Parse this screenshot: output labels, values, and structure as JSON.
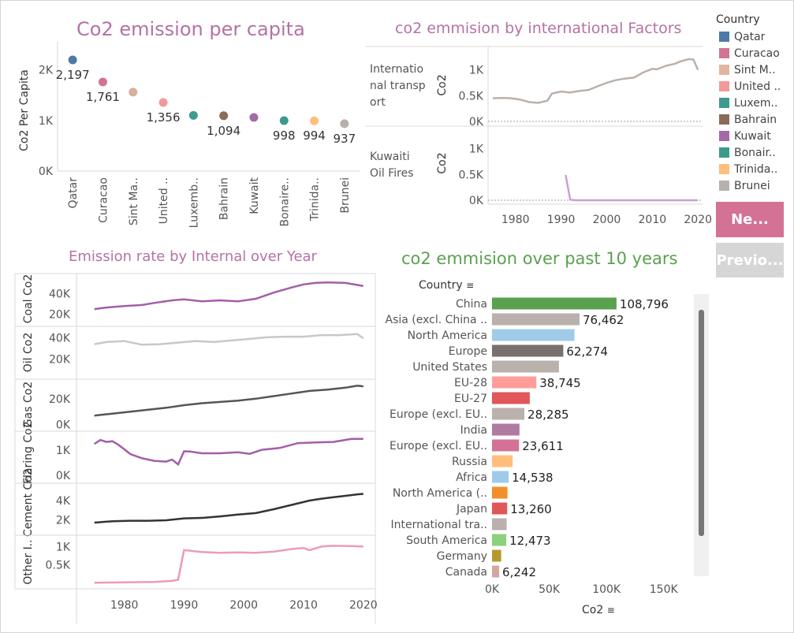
{
  "legend": {
    "title": "Country",
    "items": [
      {
        "label": "Qatar",
        "color": "#4e79a7"
      },
      {
        "label": "Curacao",
        "color": "#d37295"
      },
      {
        "label": "Sint M..",
        "color": "#e3b4a1"
      },
      {
        "label": "United ..",
        "color": "#f19a9a"
      },
      {
        "label": "Luxem..",
        "color": "#3f9a90"
      },
      {
        "label": "Bahrain",
        "color": "#8c6c57"
      },
      {
        "label": "Kuwait",
        "color": "#a46aa8"
      },
      {
        "label": "Bonair..",
        "color": "#3b9a8c"
      },
      {
        "label": "Trinida..",
        "color": "#ffbe7d"
      },
      {
        "label": "Brunei",
        "color": "#b8b0ac"
      }
    ]
  },
  "buttons": {
    "next_label": "Ne...",
    "prev_label": "Previo...",
    "next_color": "#d37295",
    "prev_color": "#d6d6d6"
  },
  "chart_data": [
    {
      "type": "scatter",
      "title": "Co2 emission per capita",
      "title_color": "#b572a6",
      "ylabel": "Co2 Per Capita",
      "ylim": [
        0,
        2400
      ],
      "yticks": [
        {
          "v": 0,
          "label": "0K"
        },
        {
          "v": 1000,
          "label": "1K"
        },
        {
          "v": 2000,
          "label": "2K"
        }
      ],
      "categories": [
        "Qatar",
        "Curacao",
        "Sint Ma..",
        "United ..",
        "Luxemb..",
        "Bahrain",
        "Kuwait",
        "Bonaire..",
        "Trinida..",
        "Brunei"
      ],
      "values": [
        2197,
        1761,
        1560,
        1356,
        1100,
        1094,
        1060,
        998,
        994,
        937
      ],
      "data_labels": [
        "2,197",
        "1,761",
        "",
        "1,356",
        "",
        "1,094",
        "",
        "998",
        "994",
        "937"
      ],
      "colors": [
        "#4e79a7",
        "#d37295",
        "#d8b09b",
        "#f19a9a",
        "#3f9a90",
        "#8c6c57",
        "#a46aa8",
        "#3b9a8c",
        "#ffbe7d",
        "#b8b0ac"
      ]
    },
    {
      "type": "line",
      "title": "co2 emmision by international Factors",
      "title_color": "#b572a6",
      "ylabel": "Co2",
      "xlim": [
        1974,
        2021
      ],
      "xticks": [
        1980,
        1990,
        2000,
        2010,
        2020
      ],
      "ylim": [
        0,
        1300
      ],
      "yticks": [
        {
          "v": 0,
          "label": "0K"
        },
        {
          "v": 500,
          "label": "0.5K"
        },
        {
          "v": 1000,
          "label": "1K"
        }
      ],
      "series": [
        {
          "name": "International transport",
          "facet_label": "Internatio nal transp ort",
          "color": "#bbb0aa",
          "x": [
            1975,
            1977,
            1979,
            1981,
            1983,
            1985,
            1987,
            1988,
            1989,
            1990,
            1992,
            1994,
            1996,
            1998,
            2000,
            2002,
            2004,
            2006,
            2008,
            2010,
            2011,
            2013,
            2015,
            2016,
            2018,
            2019,
            2020
          ],
          "y": [
            450,
            455,
            450,
            425,
            375,
            360,
            400,
            540,
            560,
            580,
            560,
            590,
            610,
            680,
            750,
            800,
            830,
            850,
            950,
            1020,
            1010,
            1080,
            1120,
            1160,
            1210,
            1200,
            1000
          ]
        },
        {
          "name": "Kuwaiti Oil Fires",
          "facet_label": "Kuwaiti Oil Fires",
          "color": "#c9a0d0",
          "x": [
            1991,
            1992,
            1993,
            2000,
            2010,
            2020
          ],
          "y": [
            490,
            10,
            0,
            0,
            0,
            0
          ]
        }
      ]
    },
    {
      "type": "line",
      "title": "Emission rate by Internal over Year",
      "title_color": "#b572a6",
      "xlim": [
        1972,
        2022
      ],
      "xticks": [
        1980,
        1990,
        2000,
        2010,
        2020
      ],
      "series": [
        {
          "name": "Coal Co2",
          "color": "#a35ea8",
          "ylim": [
            12000,
            55000
          ],
          "yticks": [
            {
              "v": 20000,
              "label": "20K"
            },
            {
              "v": 40000,
              "label": "40K"
            }
          ],
          "x": [
            1975,
            1977,
            1980,
            1983,
            1985,
            1988,
            1990,
            1993,
            1996,
            1999,
            2002,
            2005,
            2008,
            2010,
            2012,
            2014,
            2017,
            2019,
            2020
          ],
          "y": [
            25000,
            26500,
            28000,
            29000,
            31000,
            33500,
            34500,
            32500,
            33500,
            32500,
            35000,
            41000,
            46000,
            49000,
            50500,
            51000,
            50500,
            48500,
            47500
          ]
        },
        {
          "name": "Oil Co2",
          "color": "#c8c8c8",
          "ylim": [
            5000,
            47000
          ],
          "yticks": [
            {
              "v": 20000,
              "label": "20K"
            },
            {
              "v": 40000,
              "label": "40K"
            }
          ],
          "x": [
            1975,
            1977,
            1980,
            1983,
            1986,
            1989,
            1992,
            1995,
            1998,
            2001,
            2004,
            2007,
            2010,
            2013,
            2016,
            2019,
            2020
          ],
          "y": [
            34000,
            36000,
            37000,
            33500,
            34000,
            35500,
            37000,
            36000,
            37500,
            39000,
            40500,
            41000,
            41000,
            42500,
            42500,
            43500,
            39500
          ]
        },
        {
          "name": "Gas Co2",
          "color": "#555555",
          "ylim": [
            -2000,
            32000
          ],
          "yticks": [
            {
              "v": 0,
              "label": "0K"
            },
            {
              "v": 20000,
              "label": "20K"
            }
          ],
          "x": [
            1975,
            1978,
            1981,
            1984,
            1987,
            1990,
            1993,
            1996,
            1999,
            2002,
            2005,
            2008,
            2011,
            2014,
            2017,
            2019,
            2020
          ],
          "y": [
            7000,
            8500,
            10000,
            11500,
            13000,
            15000,
            16500,
            17500,
            18500,
            20000,
            22000,
            24000,
            26000,
            27000,
            28500,
            30000,
            29500
          ]
        },
        {
          "name": "Flaring Co2",
          "color": "#a35ea8",
          "ylim": [
            -150,
            1600
          ],
          "yticks": [
            {
              "v": 0,
              "label": "0K"
            },
            {
              "v": 1000,
              "label": "1K"
            }
          ],
          "x": [
            1975,
            1976,
            1977,
            1978,
            1979,
            1980,
            1981,
            1983,
            1985,
            1987,
            1988,
            1989,
            1990,
            1991,
            1993,
            1996,
            1999,
            2001,
            2003,
            2006,
            2009,
            2012,
            2015,
            2018,
            2020
          ],
          "y": [
            1250,
            1410,
            1330,
            1360,
            1220,
            1040,
            850,
            680,
            580,
            550,
            630,
            440,
            960,
            950,
            880,
            880,
            920,
            860,
            1020,
            1090,
            1280,
            1310,
            1330,
            1450,
            1450
          ]
        },
        {
          "name": "Cement Co2",
          "color": "#333333",
          "ylim": [
            800,
            5400
          ],
          "yticks": [
            {
              "v": 2000,
              "label": "2K"
            },
            {
              "v": 4000,
              "label": "4K"
            }
          ],
          "x": [
            1975,
            1978,
            1981,
            1984,
            1987,
            1990,
            1993,
            1996,
            1999,
            2002,
            2005,
            2008,
            2011,
            2013,
            2015,
            2017,
            2019,
            2020
          ],
          "y": [
            1700,
            1850,
            1900,
            1900,
            1950,
            2150,
            2200,
            2350,
            2550,
            2700,
            3100,
            3550,
            4000,
            4200,
            4350,
            4500,
            4650,
            4700
          ]
        },
        {
          "name": "Other I..",
          "color": "#ee9ab8",
          "ylim": [
            -50,
            1200
          ],
          "yticks": [
            {
              "v": 500,
              "label": "0.5K"
            },
            {
              "v": 1000,
              "label": "1K"
            }
          ],
          "x": [
            1975,
            1980,
            1985,
            1988,
            1989,
            1990,
            1993,
            1996,
            1999,
            2002,
            2005,
            2008,
            2010,
            2011,
            2013,
            2015,
            2018,
            2020
          ],
          "y": [
            10,
            20,
            30,
            60,
            90,
            900,
            850,
            830,
            840,
            830,
            860,
            930,
            960,
            900,
            1000,
            1020,
            1010,
            1000
          ]
        }
      ]
    },
    {
      "type": "bar",
      "title": "co2 emmision over past 10 years",
      "title_color": "#59a14f",
      "category_header": "Country",
      "xlabel": "Co2",
      "xlim": [
        0,
        175000
      ],
      "xticks": [
        {
          "v": 0,
          "label": "0K"
        },
        {
          "v": 50000,
          "label": "50K"
        },
        {
          "v": 100000,
          "label": "100K"
        },
        {
          "v": 150000,
          "label": "150K"
        }
      ],
      "categories": [
        "China",
        "Asia (excl. China ..",
        "North America",
        "Europe",
        "United States",
        "EU-28",
        "EU-27",
        "Europe (excl. EU..",
        "India",
        "Europe (excl. EU..",
        "Russia",
        "Africa",
        "North America (..",
        "Japan",
        "International tra..",
        "South America",
        "Germany",
        "Canada"
      ],
      "values": [
        108796,
        76462,
        72000,
        62274,
        58500,
        38745,
        33000,
        28285,
        24000,
        23611,
        18000,
        14538,
        13500,
        13260,
        12800,
        12473,
        8000,
        6242
      ],
      "data_labels": [
        "108,796",
        "76,462",
        "",
        "62,274",
        "",
        "38,745",
        "",
        "28,285",
        "",
        "23,611",
        "",
        "14,538",
        "",
        "13,260",
        "",
        "12,473",
        "",
        "6,242"
      ],
      "colors": [
        "#59a14f",
        "#bab0ac",
        "#a0cbe8",
        "#79706e",
        "#bab0ac",
        "#ff9d9a",
        "#e15759",
        "#bab0ac",
        "#b07aa1",
        "#d37295",
        "#ffbe7d",
        "#a0cbe8",
        "#f28e2b",
        "#e15759",
        "#bab0ac",
        "#8cd17d",
        "#b6992d",
        "#d4a6a0"
      ]
    }
  ]
}
